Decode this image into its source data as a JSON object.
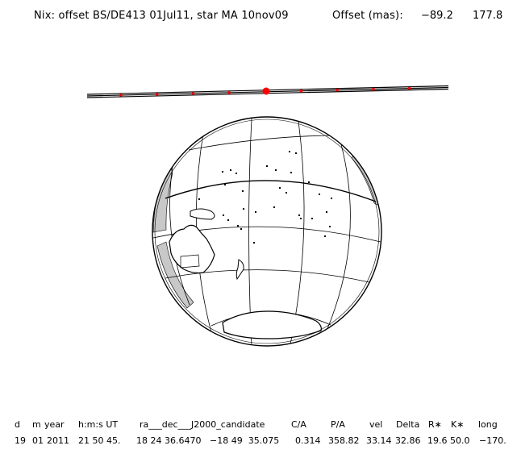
{
  "header": {
    "title": "Nix: offset BS/DE413 01Jul11, star MA 10nov09",
    "offset_label": "Offset (mas):",
    "offset_x": "−89.2",
    "offset_y": "177.8"
  },
  "track": {
    "line_color": "#000000",
    "marker_color": "#ff0000",
    "marker_count": 9
  },
  "globe": {
    "land_color": "#ffffff",
    "limb_shade_color": "#c8c8c8",
    "grid": "on"
  },
  "table": {
    "headers": [
      "d",
      "m",
      "year",
      "h:m:s UT",
      "ra___dec___J2000_candidate",
      "C/A",
      "P/A",
      "vel",
      "Delta",
      "R∗",
      "K∗",
      "long"
    ],
    "values": [
      "19",
      "01",
      "2011",
      "21 50 45.",
      "18 24 36.6470",
      "−18 49  35.075",
      "0.314",
      "358.82",
      "33.14",
      "32.86",
      "19.6",
      "50.0",
      "−170."
    ]
  }
}
